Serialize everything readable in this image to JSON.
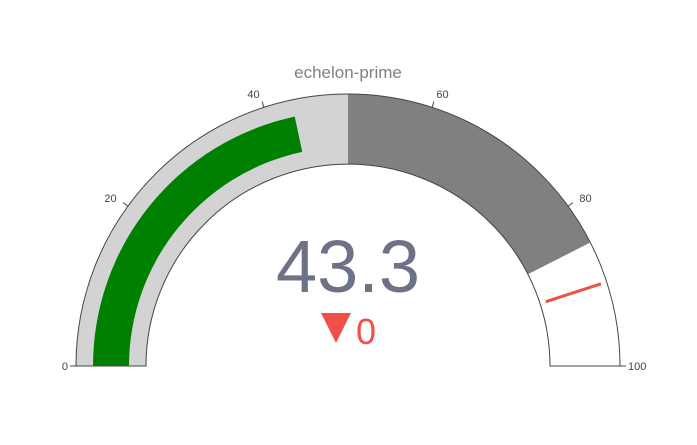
{
  "chart_data": {
    "type": "gauge",
    "title": "echelon-prime",
    "value": 43.3,
    "value_label": "43.3",
    "delta": {
      "value": 0,
      "label": "0",
      "direction": "down",
      "color": "#ef5146"
    },
    "axis": {
      "range": [
        0,
        100
      ],
      "ticks": [
        0,
        20,
        40,
        60,
        80,
        100
      ]
    },
    "bar": {
      "color": "#008000",
      "value": 43.3
    },
    "background_color": "#d3d3d3",
    "steps": [
      {
        "range": [
          50,
          85
        ],
        "color": "#808080"
      }
    ],
    "threshold": {
      "value": 90,
      "color": "#ef5146"
    }
  }
}
